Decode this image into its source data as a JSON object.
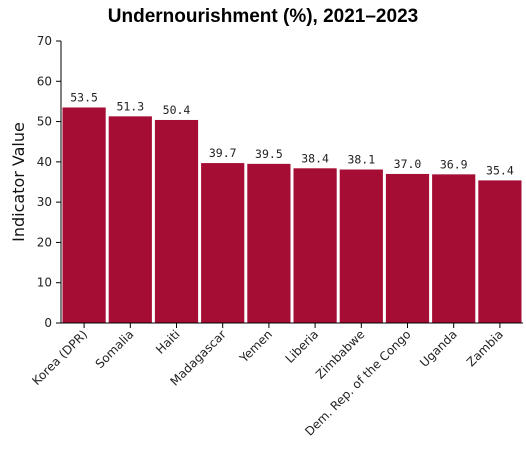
{
  "chart_data": {
    "type": "bar",
    "title": "Undernourishment (%), 2021–2023",
    "xlabel": "",
    "ylabel": "Indicator Value",
    "ylim": [
      0,
      70
    ],
    "yticks": [
      0,
      10,
      20,
      30,
      40,
      50,
      60,
      70
    ],
    "categories": [
      "Korea (DPR)",
      "Somalia",
      "Haiti",
      "Madagascar",
      "Yemen",
      "Liberia",
      "Zimbabwe",
      "Dem. Rep. of the Congo",
      "Uganda",
      "Zambia"
    ],
    "values": [
      53.5,
      51.3,
      50.4,
      39.7,
      39.5,
      38.4,
      38.1,
      37.0,
      36.9,
      35.4
    ],
    "value_labels": [
      "53.5",
      "51.3",
      "50.4",
      "39.7",
      "39.5",
      "38.4",
      "38.1",
      "37.0",
      "36.9",
      "35.4"
    ],
    "grid": false,
    "legend": "none",
    "bar_color": "#a50d35"
  }
}
